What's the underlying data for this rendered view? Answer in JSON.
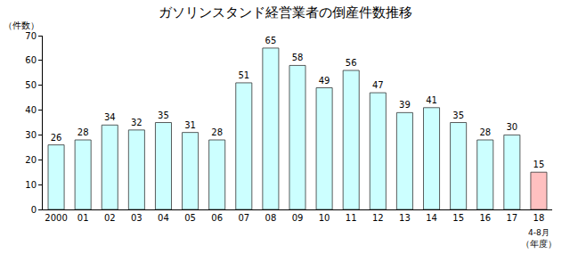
{
  "chart_data": {
    "type": "bar",
    "title": "ガソリンスタンド経営業者の倒産件数推移",
    "y_label": "（件数）",
    "x_label": "（年度）",
    "categories": [
      "2000",
      "01",
      "02",
      "03",
      "04",
      "05",
      "06",
      "07",
      "08",
      "09",
      "10",
      "11",
      "12",
      "13",
      "14",
      "15",
      "16",
      "17",
      "18"
    ],
    "values": [
      26,
      28,
      34,
      32,
      35,
      31,
      28,
      51,
      65,
      58,
      49,
      56,
      47,
      39,
      41,
      35,
      28,
      30,
      15
    ],
    "colors": [
      "#ccffff",
      "#ccffff",
      "#ccffff",
      "#ccffff",
      "#ccffff",
      "#ccffff",
      "#ccffff",
      "#ccffff",
      "#ccffff",
      "#ccffff",
      "#ccffff",
      "#ccffff",
      "#ccffff",
      "#ccffff",
      "#ccffff",
      "#ccffff",
      "#ccffff",
      "#ccffff",
      "#ffc0c0"
    ],
    "annotations": [
      {
        "text": "4-8月",
        "category": "18"
      }
    ],
    "ylim": [
      0,
      70
    ],
    "yticks": [
      0,
      10,
      20,
      30,
      40,
      50,
      60,
      70
    ],
    "grid": false,
    "data_labels": true
  }
}
